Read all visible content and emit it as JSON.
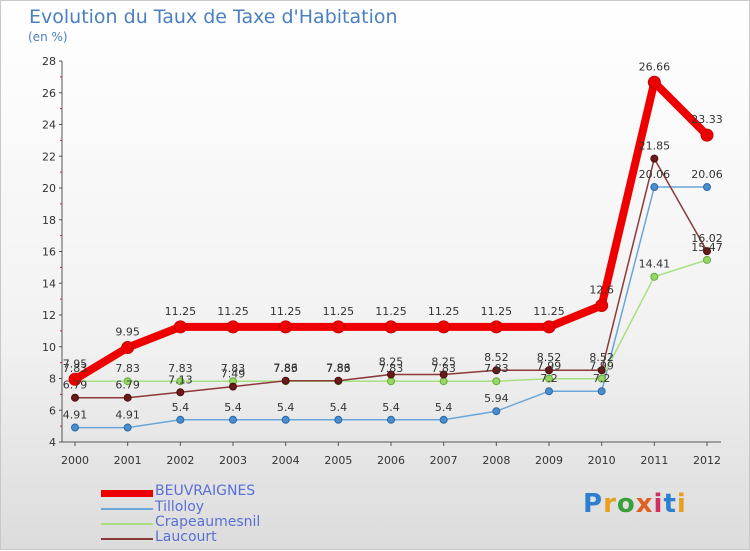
{
  "header": {
    "title": "Evolution du Taux de Taxe d'Habitation",
    "subtitle": "(en %)"
  },
  "logo": {
    "text": "Proxiti"
  },
  "colors": {
    "BEUVRAIGNES": "#ee0000",
    "Tilloloy": "#6aa6d8",
    "Crapeaumesnil": "#a8e080",
    "Laucourt": "#8b3a3a"
  },
  "chart_data": {
    "type": "line",
    "x": [
      "2000",
      "2001",
      "2002",
      "2003",
      "2004",
      "2005",
      "2006",
      "2007",
      "2008",
      "2009",
      "2010",
      "2011",
      "2012"
    ],
    "ylim": [
      4,
      28
    ],
    "yticks": [
      4,
      6,
      8,
      10,
      12,
      14,
      16,
      18,
      20,
      22,
      24,
      26,
      28
    ],
    "grid": false,
    "legend_position": "bottom-left",
    "series": [
      {
        "name": "BEUVRAIGNES",
        "values": [
          7.95,
          9.95,
          11.25,
          11.25,
          11.25,
          11.25,
          11.25,
          11.25,
          11.25,
          11.25,
          12.6,
          26.66,
          23.33
        ],
        "labels": [
          "7.95",
          "9.95",
          "11.25",
          "11.25",
          "11.25",
          "11.25",
          "11.25",
          "11.25",
          "11.25",
          "11.25",
          "12.6",
          "26.66",
          "23.33"
        ]
      },
      {
        "name": "Tilloloy",
        "values": [
          4.91,
          4.91,
          5.4,
          5.4,
          5.4,
          5.4,
          5.4,
          5.4,
          5.94,
          7.2,
          7.2,
          20.06,
          20.06
        ],
        "labels": [
          "4.91",
          "4.91",
          "5.4",
          "5.4",
          "5.4",
          "5.4",
          "5.4",
          "5.4",
          "5.94",
          "7.2",
          "7.2",
          "20.06",
          "20.06"
        ]
      },
      {
        "name": "Crapeaumesnil",
        "values": [
          7.83,
          7.83,
          7.83,
          7.83,
          7.83,
          7.83,
          7.83,
          7.83,
          7.83,
          7.99,
          7.99,
          14.41,
          15.47
        ],
        "labels": [
          "7.83",
          "7.83",
          "7.83",
          "7.83",
          "7.83",
          "7.83",
          "7.83",
          "7.83",
          "7.83",
          "7.99",
          "7.99",
          "14.41",
          "15.47"
        ]
      },
      {
        "name": "Laucourt",
        "values": [
          6.79,
          6.79,
          7.13,
          7.49,
          7.86,
          7.86,
          8.25,
          8.25,
          8.52,
          8.52,
          8.52,
          21.85,
          16.02
        ],
        "labels": [
          "6.79",
          "6.79",
          "7.13",
          "7.49",
          "7.86",
          "7.86",
          "8.25",
          "8.25",
          "8.52",
          "8.52",
          "8.52",
          "21.85",
          "16.02"
        ]
      }
    ]
  }
}
